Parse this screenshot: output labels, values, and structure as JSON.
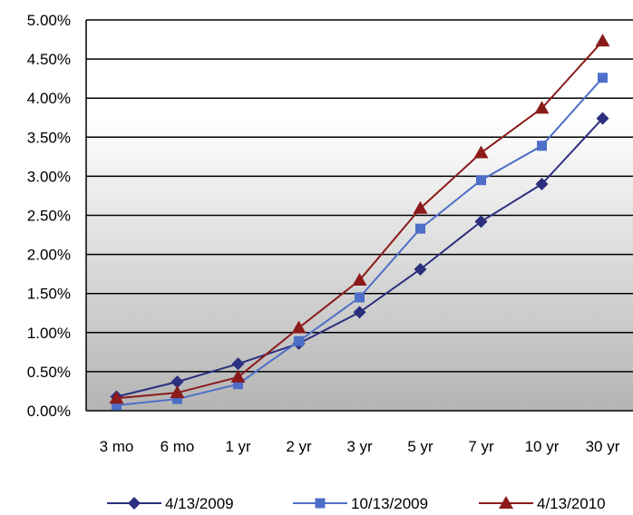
{
  "chart_data": {
    "type": "line",
    "title": "",
    "xlabel": "",
    "ylabel": "",
    "categories": [
      "3 mo",
      "6 mo",
      "1 yr",
      "2 yr",
      "3 yr",
      "5 yr",
      "7 yr",
      "10 yr",
      "30 yr"
    ],
    "ylim": [
      0,
      5
    ],
    "y_ticks": [
      "0.00%",
      "0.50%",
      "1.00%",
      "1.50%",
      "2.00%",
      "2.50%",
      "3.00%",
      "3.50%",
      "4.00%",
      "4.50%",
      "5.00%"
    ],
    "grid": true,
    "legend_position": "bottom",
    "series": [
      {
        "name": "4/13/2009",
        "marker": "diamond",
        "color": "#2B2F7E",
        "values": [
          0.18,
          0.37,
          0.6,
          0.86,
          1.26,
          1.81,
          2.42,
          2.9,
          3.74
        ]
      },
      {
        "name": "10/13/2009",
        "marker": "square",
        "color": "#4D6FC8",
        "values": [
          0.07,
          0.15,
          0.34,
          0.89,
          1.45,
          2.33,
          2.95,
          3.39,
          4.26
        ]
      },
      {
        "name": "4/13/2010",
        "marker": "triangle",
        "color": "#8B1A1A",
        "values": [
          0.16,
          0.23,
          0.43,
          1.06,
          1.67,
          2.59,
          3.3,
          3.87,
          4.73
        ]
      }
    ]
  }
}
